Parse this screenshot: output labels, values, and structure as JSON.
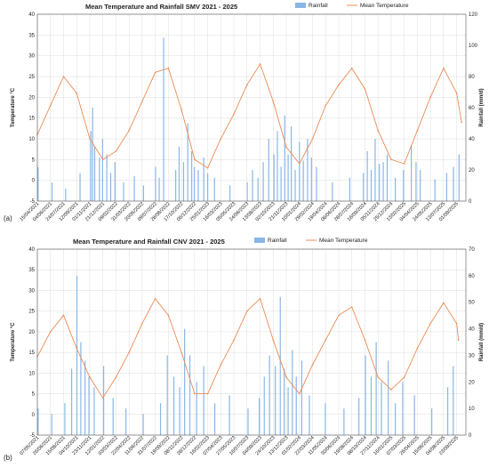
{
  "colors": {
    "rainfall": "#8ab6e6",
    "temperature": "#ea8c55",
    "grid": "#dcdcdc",
    "axis": "#555555"
  },
  "chart_data": [
    {
      "type": "line",
      "panel_label": "(a)",
      "title": "Mean Temperature and Rainfall SMV 2021 - 2025",
      "ylabel": "Temperature °C",
      "y2label": "Rainfall (mm/d)",
      "ylim": [
        -5,
        40
      ],
      "y2lim": [
        0,
        120
      ],
      "yticks": [
        "-5",
        "0",
        "5",
        "10",
        "15",
        "20",
        "25",
        "30",
        "35",
        "40"
      ],
      "y2ticks": [
        "0",
        "20",
        "40",
        "60",
        "80",
        "100",
        "120"
      ],
      "grid": true,
      "legend": {
        "position": "top-center",
        "entries": [
          "Rainfall",
          "Mean Temperature"
        ]
      },
      "xticks": [
        "15/04/2021",
        "04/06/2021",
        "24/07/2021",
        "12/09/2021",
        "01/11/2021",
        "21/12/2021",
        "09/02/2022",
        "31/03/2022",
        "20/05/2022",
        "09/07/2022",
        "28/08/2022",
        "17/10/2022",
        "06/12/2022",
        "25/01/2023",
        "16/03/2023",
        "05/05/2023",
        "24/06/2023",
        "13/08/2023",
        "02/10/2023",
        "21/11/2023",
        "10/01/2024",
        "29/02/2024",
        "19/04/2024",
        "08/06/2024",
        "28/07/2024",
        "16/09/2024",
        "05/11/2024",
        "25/12/2024",
        "13/02/2025",
        "04/04/2025",
        "24/05/2025",
        "13/07/2025",
        "01/09/2025"
      ],
      "temperature_series": {
        "name": "Mean Temperature",
        "x": [
          "15/04/2021",
          "04/06/2021",
          "24/07/2021",
          "12/09/2021",
          "01/11/2021",
          "21/12/2021",
          "09/02/2022",
          "31/03/2022",
          "20/05/2022",
          "09/07/2022",
          "28/08/2022",
          "17/10/2022",
          "06/12/2022",
          "25/01/2023",
          "16/03/2023",
          "05/05/2023",
          "24/06/2023",
          "13/08/2023",
          "02/10/2023",
          "21/11/2023",
          "10/01/2024",
          "29/02/2024",
          "19/04/2024",
          "08/06/2024",
          "28/07/2024",
          "16/09/2024",
          "05/11/2024",
          "25/12/2024",
          "13/02/2025",
          "04/04/2025",
          "24/05/2025",
          "13/07/2025",
          "01/09/2025",
          "20/09/2025"
        ],
        "y": [
          11,
          18,
          25,
          21,
          10,
          5,
          7,
          12,
          19,
          26,
          27,
          17,
          5,
          3,
          10,
          16,
          23,
          28,
          19,
          8,
          4,
          10,
          18,
          23,
          27,
          22,
          12,
          5,
          4,
          12,
          20,
          27,
          21,
          14
        ]
      },
      "rainfall_series": {
        "name": "Rainfall",
        "x": [
          "18/04/2021",
          "10/06/2021",
          "01/08/2021",
          "25/09/2021",
          "05/11/2021",
          "12/11/2021",
          "20/11/2021",
          "08/12/2021",
          "20/12/2021",
          "05/01/2022",
          "20/01/2022",
          "05/02/2022",
          "10/03/2022",
          "20/04/2022",
          "25/05/2022",
          "10/07/2022",
          "24/07/2022",
          "10/08/2022",
          "25/09/2022",
          "08/10/2022",
          "25/10/2022",
          "10/11/2022",
          "25/11/2022",
          "05/12/2022",
          "20/12/2022",
          "10/01/2023",
          "25/01/2023",
          "20/02/2023",
          "20/04/2023",
          "25/06/2023",
          "15/07/2023",
          "05/08/2023",
          "25/08/2023",
          "15/09/2023",
          "05/10/2023",
          "18/10/2023",
          "01/11/2023",
          "15/11/2023",
          "28/11/2023",
          "10/12/2023",
          "25/12/2023",
          "10/01/2024",
          "25/01/2024",
          "10/02/2024",
          "25/02/2024",
          "15/03/2024",
          "15/05/2024",
          "20/07/2024",
          "10/09/2024",
          "25/09/2024",
          "10/10/2024",
          "25/10/2024",
          "10/11/2024",
          "25/11/2024",
          "10/12/2024",
          "10/01/2025",
          "10/02/2025",
          "12/03/2025",
          "30/03/2025",
          "15/04/2025",
          "10/06/2025",
          "25/07/2025",
          "20/08/2025",
          "10/09/2025"
        ],
        "values": [
          22,
          12,
          8,
          18,
          45,
          60,
          35,
          28,
          40,
          30,
          18,
          25,
          12,
          16,
          10,
          22,
          15,
          105,
          20,
          35,
          25,
          50,
          32,
          22,
          20,
          28,
          18,
          15,
          10,
          12,
          20,
          15,
          25,
          40,
          30,
          45,
          22,
          55,
          30,
          48,
          20,
          38,
          26,
          40,
          28,
          22,
          12,
          15,
          18,
          32,
          20,
          40,
          24,
          25,
          30,
          15,
          20,
          36,
          25,
          20,
          14,
          18,
          22,
          30
        ]
      }
    },
    {
      "type": "line",
      "panel_label": "(b)",
      "title": "Mean Temperature and Rainfall CNV 2021 - 2025",
      "ylabel": "Temperature °C",
      "y2label": "Rainfall (mm/d)",
      "ylim": [
        -5,
        40
      ],
      "y2lim": [
        0,
        70
      ],
      "yticks": [
        "-5",
        "0",
        "5",
        "10",
        "15",
        "20",
        "25",
        "30",
        "35",
        "40"
      ],
      "y2ticks": [
        "0",
        "10",
        "20",
        "30",
        "40",
        "50",
        "60",
        "70"
      ],
      "grid": true,
      "legend": {
        "position": "top-center",
        "entries": [
          "Rainfall",
          "Mean Temperature"
        ]
      },
      "xticks": [
        "07/05/2021",
        "26/06/2021",
        "15/08/2021",
        "04/10/2021",
        "23/11/2021",
        "12/01/2022",
        "03/03/2022",
        "22/04/2022",
        "11/06/2022",
        "31/07/2022",
        "19/09/2022",
        "08/11/2022",
        "28/12/2022",
        "16/02/2023",
        "07/04/2023",
        "27/05/2023",
        "16/07/2023",
        "04/09/2023",
        "24/10/2023",
        "13/12/2023",
        "01/02/2024",
        "22/03/2024",
        "11/05/2024",
        "30/06/2024",
        "19/08/2024",
        "08/10/2024",
        "27/11/2024",
        "16/01/2025",
        "07/03/2025",
        "26/04/2025",
        "15/06/2025",
        "04/08/2025",
        "23/09/2025"
      ],
      "temperature_series": {
        "name": "Mean Temperature",
        "x": [
          "07/05/2021",
          "26/06/2021",
          "15/08/2021",
          "04/10/2021",
          "23/11/2021",
          "12/01/2022",
          "03/03/2022",
          "22/04/2022",
          "11/06/2022",
          "31/07/2022",
          "19/09/2022",
          "08/11/2022",
          "28/12/2022",
          "16/02/2023",
          "07/04/2023",
          "27/05/2023",
          "16/07/2023",
          "04/09/2023",
          "24/10/2023",
          "13/12/2023",
          "01/02/2024",
          "22/03/2024",
          "11/05/2024",
          "30/06/2024",
          "19/08/2024",
          "08/10/2024",
          "27/11/2024",
          "16/01/2025",
          "07/03/2025",
          "26/04/2025",
          "15/06/2025",
          "04/08/2025",
          "23/09/2025",
          "30/09/2025"
        ],
        "y": [
          14,
          20,
          24,
          16,
          9,
          4,
          9,
          15,
          22,
          28,
          24,
          15,
          5,
          5,
          12,
          18,
          25,
          28,
          18,
          9,
          5,
          12,
          18,
          24,
          26,
          18,
          9,
          6,
          9,
          16,
          22,
          27,
          22,
          18
        ]
      },
      "rainfall_series": {
        "name": "Rainfall",
        "x": [
          "10/05/2021",
          "01/07/2021",
          "20/08/2021",
          "15/09/2021",
          "05/10/2021",
          "20/10/2021",
          "05/11/2021",
          "20/11/2021",
          "10/12/2021",
          "15/01/2022",
          "20/02/2022",
          "10/04/2022",
          "15/06/2022",
          "20/08/2022",
          "15/09/2022",
          "10/10/2022",
          "01/11/2022",
          "20/11/2022",
          "10/12/2022",
          "05/01/2023",
          "01/02/2023",
          "15/03/2023",
          "10/05/2023",
          "20/07/2023",
          "01/09/2023",
          "20/09/2023",
          "10/10/2023",
          "01/11/2023",
          "20/11/2023",
          "05/12/2023",
          "20/12/2023",
          "05/01/2024",
          "20/01/2024",
          "10/02/2024",
          "10/03/2024",
          "10/05/2024",
          "20/07/2024",
          "15/09/2024",
          "10/10/2024",
          "01/11/2024",
          "20/11/2024",
          "10/12/2024",
          "05/01/2025",
          "01/02/2025",
          "01/03/2025",
          "15/04/2025",
          "20/06/2025",
          "20/08/2025",
          "10/09/2025"
        ],
        "values": [
          10,
          8,
          12,
          25,
          60,
          35,
          28,
          22,
          18,
          26,
          14,
          10,
          8,
          12,
          30,
          22,
          18,
          40,
          30,
          20,
          26,
          12,
          15,
          10,
          14,
          22,
          30,
          26,
          52,
          25,
          18,
          32,
          22,
          28,
          15,
          12,
          10,
          14,
          30,
          22,
          35,
          20,
          28,
          12,
          20,
          15,
          10,
          18,
          26
        ]
      }
    }
  ]
}
